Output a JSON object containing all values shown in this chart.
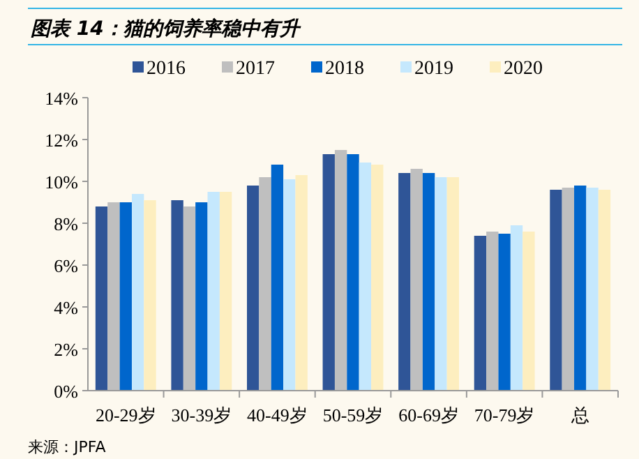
{
  "chart_data": {
    "type": "bar",
    "title": "图表 14：猫的饲养率稳中有升",
    "categories": [
      "20-29岁",
      "30-39岁",
      "40-49岁",
      "50-59岁",
      "60-69岁",
      "70-79岁",
      "总"
    ],
    "series": [
      {
        "name": "2016",
        "color": "#2f5597",
        "values": [
          8.8,
          9.1,
          9.8,
          11.3,
          10.4,
          7.4,
          9.6
        ]
      },
      {
        "name": "2017",
        "color": "#bfbfbf",
        "values": [
          9.0,
          8.8,
          10.2,
          11.5,
          10.6,
          7.6,
          9.7
        ]
      },
      {
        "name": "2018",
        "color": "#0066cc",
        "values": [
          9.0,
          9.0,
          10.8,
          11.3,
          10.4,
          7.5,
          9.8
        ]
      },
      {
        "name": "2019",
        "color": "#c5e8fd",
        "values": [
          9.4,
          9.5,
          10.1,
          10.9,
          10.2,
          7.9,
          9.7
        ]
      },
      {
        "name": "2020",
        "color": "#fdeebf",
        "values": [
          9.1,
          9.5,
          10.3,
          10.8,
          10.2,
          7.6,
          9.6
        ]
      }
    ],
    "ylim": [
      0,
      14
    ],
    "yticks": [
      {
        "value": 0,
        "label": "0%"
      },
      {
        "value": 2,
        "label": "2%"
      },
      {
        "value": 4,
        "label": "4%"
      },
      {
        "value": 6,
        "label": "6%"
      },
      {
        "value": 8,
        "label": "8%"
      },
      {
        "value": 10,
        "label": "10%"
      },
      {
        "value": 12,
        "label": "12%"
      },
      {
        "value": 14,
        "label": "14%"
      }
    ],
    "legend": "top",
    "grid": false,
    "annotations": [
      "来源：JPFA"
    ]
  }
}
